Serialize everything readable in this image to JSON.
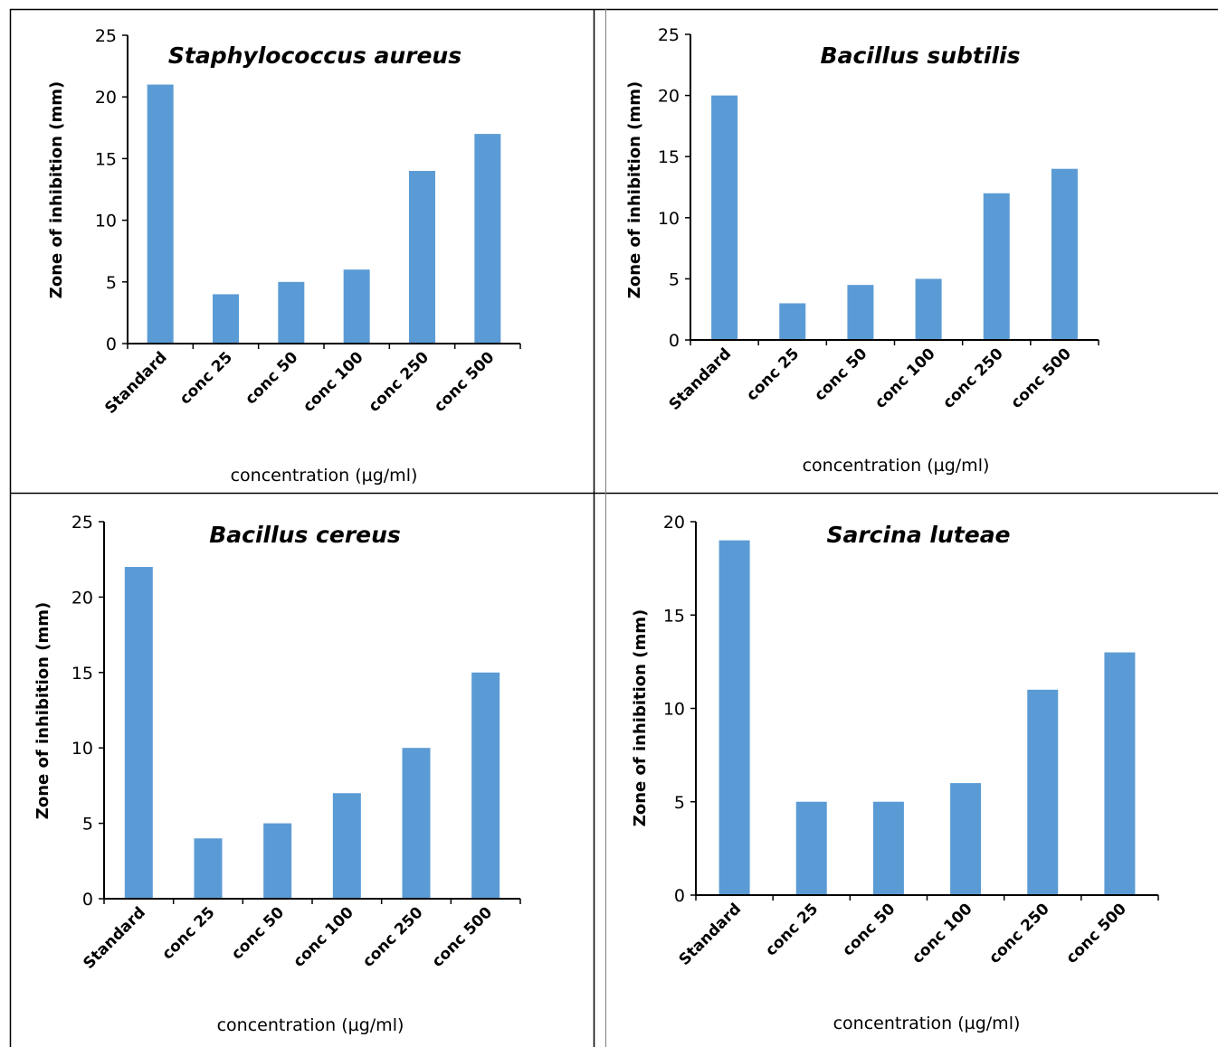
{
  "chart_data": [
    {
      "type": "bar",
      "title": "Staphylococcus aureus",
      "xlabel": "concentration (µg/ml)",
      "ylabel": "Zone of inhibition (mm)",
      "categories": [
        "Standard",
        "conc 25",
        "conc 50",
        "conc 100",
        "conc 250",
        "conc 500"
      ],
      "values": [
        21,
        4,
        5,
        6,
        14,
        17
      ],
      "ylim": [
        0,
        25
      ],
      "yticks": [
        0,
        5,
        10,
        15,
        20,
        25
      ],
      "grid": false,
      "color": "#5b9bd5"
    },
    {
      "type": "bar",
      "title": "Bacillus subtilis",
      "xlabel": "concentration (µg/ml)",
      "ylabel": "Zone of inhibition (mm)",
      "categories": [
        "Standard",
        "conc 25",
        "conc 50",
        "conc 100",
        "conc 250",
        "conc 500"
      ],
      "values": [
        20,
        3,
        4.5,
        5,
        12,
        14
      ],
      "ylim": [
        0,
        25
      ],
      "yticks": [
        0,
        5,
        10,
        15,
        20,
        25
      ],
      "grid": false,
      "color": "#5b9bd5"
    },
    {
      "type": "bar",
      "title": "Bacillus cereus",
      "xlabel": "concentration (µg/ml)",
      "ylabel": "Zone of inhibition (mm)",
      "categories": [
        "Standard",
        "conc 25",
        "conc 50",
        "conc 100",
        "conc 250",
        "conc 500"
      ],
      "values": [
        22,
        4,
        5,
        7,
        10,
        15
      ],
      "ylim": [
        0,
        25
      ],
      "yticks": [
        0,
        5,
        10,
        15,
        20,
        25
      ],
      "grid": false,
      "color": "#5b9bd5"
    },
    {
      "type": "bar",
      "title": "Sarcina luteae",
      "xlabel": "concentration (µg/ml)",
      "ylabel": "Zone of inhibition (mm)",
      "categories": [
        "Standard",
        "conc 25",
        "conc 50",
        "conc 100",
        "conc 250",
        "conc 500"
      ],
      "values": [
        19,
        5,
        5,
        6,
        11,
        13
      ],
      "ylim": [
        0,
        20
      ],
      "yticks": [
        0,
        5,
        10,
        15,
        20
      ],
      "grid": false,
      "color": "#5b9bd5"
    }
  ]
}
